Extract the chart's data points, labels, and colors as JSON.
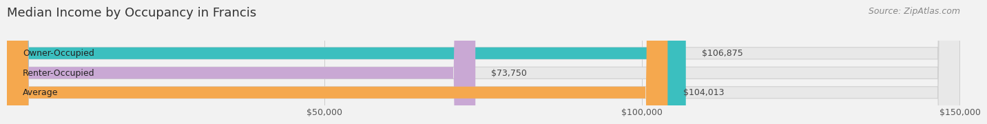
{
  "title": "Median Income by Occupancy in Francis",
  "source": "Source: ZipAtlas.com",
  "categories": [
    "Owner-Occupied",
    "Renter-Occupied",
    "Average"
  ],
  "values": [
    106875,
    73750,
    104013
  ],
  "bar_colors": [
    "#3bbfbf",
    "#c9a8d4",
    "#f5a84e"
  ],
  "bar_bg_color": "#e8e8e8",
  "value_labels": [
    "$106,875",
    "$73,750",
    "$104,013"
  ],
  "xlim": [
    0,
    150000
  ],
  "xticks": [
    50000,
    100000,
    150000
  ],
  "xtick_labels": [
    "$50,000",
    "$100,000",
    "$150,000"
  ],
  "title_fontsize": 13,
  "source_fontsize": 9,
  "label_fontsize": 9,
  "bar_height": 0.6,
  "background_color": "#f2f2f2"
}
